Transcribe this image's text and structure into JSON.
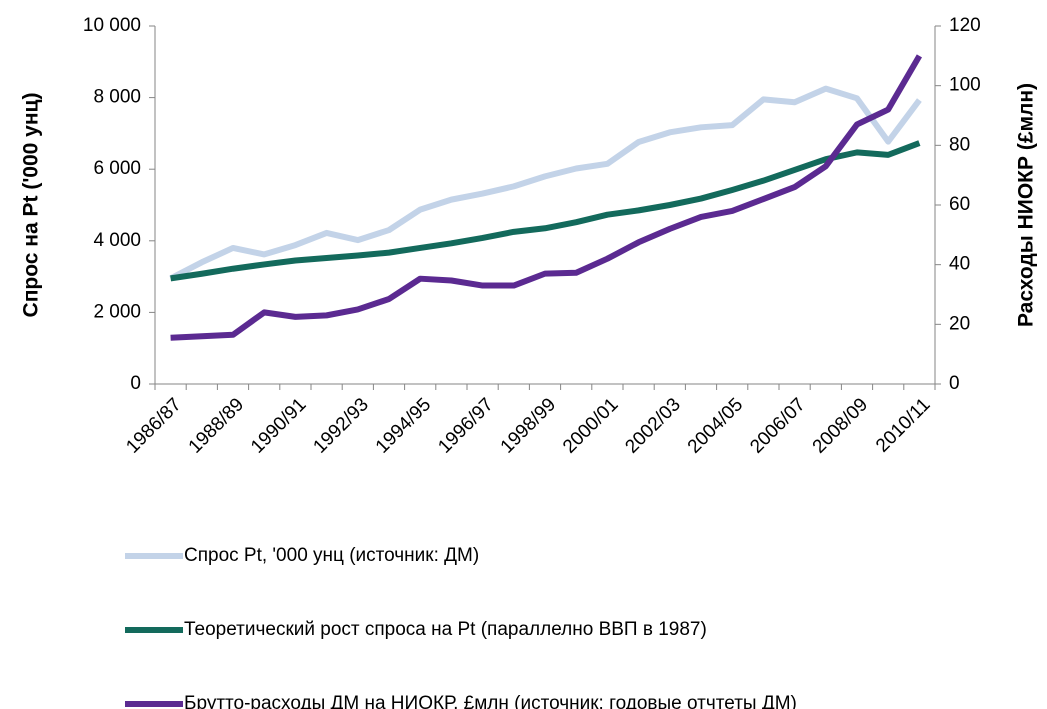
{
  "chart_data": {
    "type": "line",
    "ylabel": "Спрос на Pt ('000 унц)",
    "y2label": "Расходы НИОКР (£млн)",
    "categories": [
      "1986/87",
      null,
      "1988/89",
      null,
      "1990/91",
      null,
      "1992/93",
      null,
      "1994/95",
      null,
      "1996/97",
      null,
      "1998/99",
      null,
      "2000/01",
      null,
      "2002/03",
      null,
      "2004/05",
      null,
      "2006/07",
      null,
      "2008/09",
      null,
      "2010/11"
    ],
    "ylim": [
      0,
      10000
    ],
    "yticks": [
      0,
      {
        "value": 2000,
        "label": "2 000"
      },
      {
        "value": 4000,
        "label": "4 000"
      },
      {
        "value": 6000,
        "label": "6 000"
      },
      {
        "value": 8000,
        "label": "8 000"
      },
      {
        "value": 10000,
        "label": "10 000"
      }
    ],
    "y2lim": [
      0,
      120
    ],
    "y2ticks": [
      0,
      20,
      40,
      60,
      80,
      100,
      120
    ],
    "series": [
      {
        "name": "Спрос Pt, '000 унц (источник: ДМ)",
        "color": "#c3d3e8",
        "values": [
          2950,
          3400,
          3800,
          3620,
          3880,
          4220,
          4020,
          4300,
          4870,
          5150,
          5320,
          5520,
          5800,
          6020,
          6150,
          6760,
          7030,
          7170,
          7230,
          7950,
          7870,
          8250,
          7980,
          6770,
          7930
        ]
      },
      {
        "name": "Теоретический рост спроса на Pt (параллелно ВВП в 1987)",
        "color": "#136a5c",
        "values": [
          2950,
          3080,
          3220,
          3340,
          3450,
          3520,
          3590,
          3670,
          3800,
          3930,
          4080,
          4250,
          4350,
          4520,
          4730,
          4850,
          5000,
          5180,
          5420,
          5680,
          5980,
          6280,
          6470,
          6400,
          6730
        ]
      },
      {
        "name": "Брутто-расходы ДМ на НИОКР, £млн (источник: годовые отчтеты ДМ)",
        "color": "#5b2a91",
        "axis": "y2",
        "values": [
          15.5,
          16,
          16.5,
          24,
          22.5,
          23,
          25,
          28.5,
          35.3,
          34.7,
          33,
          33,
          37,
          37.3,
          42,
          47.5,
          52,
          56,
          58,
          62,
          66,
          73,
          87,
          92,
          110
        ]
      }
    ]
  }
}
